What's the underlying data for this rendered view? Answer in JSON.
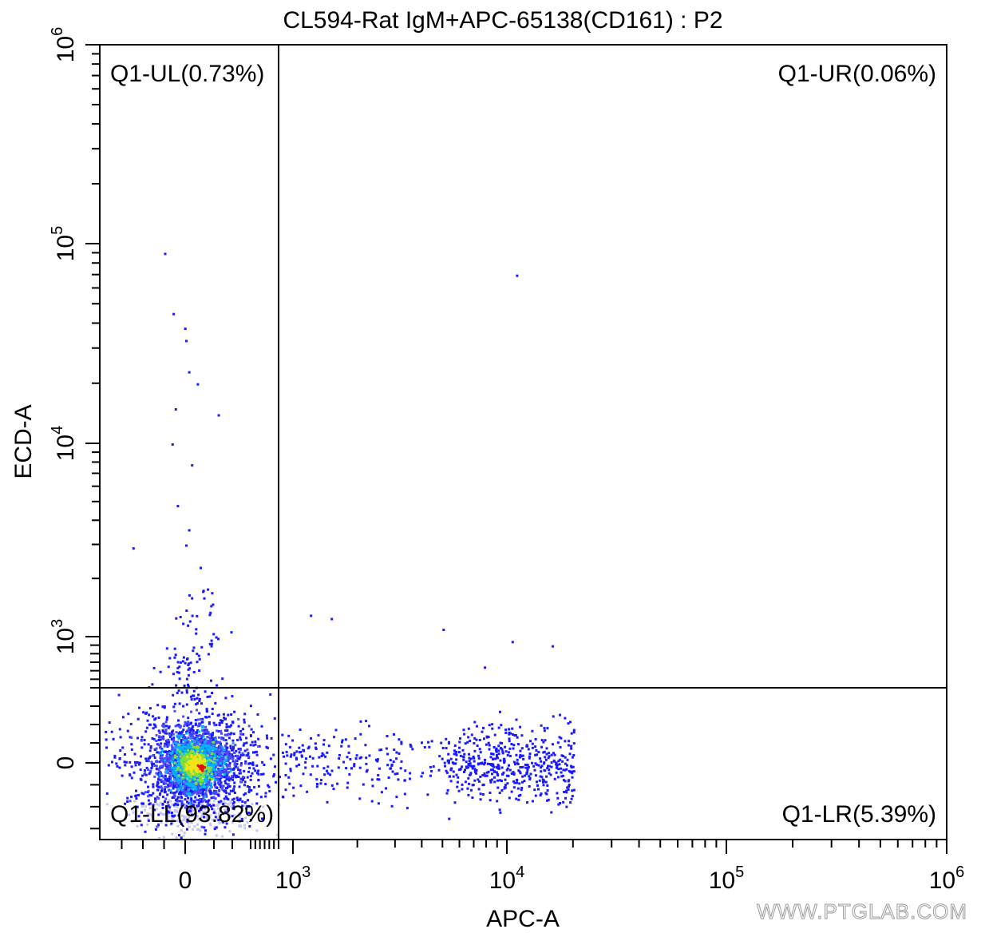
{
  "chart_data": {
    "type": "scatter",
    "title": "CL594-Rat IgM+APC-65138(CD161) : P2",
    "xlabel": "APC-A",
    "ylabel": "ECD-A",
    "x_scale": "biexponential",
    "y_scale": "biexponential",
    "xlim": [
      -400,
      1000000
    ],
    "ylim": [
      -350,
      1000000
    ],
    "grid": false,
    "x_ticks": [
      {
        "value": 0,
        "label": "0"
      },
      {
        "value": 1000,
        "base": "10",
        "exp": "3"
      },
      {
        "value": 10000,
        "base": "10",
        "exp": "4"
      },
      {
        "value": 100000,
        "base": "10",
        "exp": "5"
      },
      {
        "value": 1000000,
        "base": "10",
        "exp": "6"
      }
    ],
    "y_ticks": [
      {
        "value": 0,
        "label": "0"
      },
      {
        "value": 1000,
        "base": "10",
        "exp": "3"
      },
      {
        "value": 10000,
        "base": "10",
        "exp": "4"
      },
      {
        "value": 100000,
        "base": "10",
        "exp": "5"
      },
      {
        "value": 1000000,
        "base": "10",
        "exp": "6"
      }
    ],
    "gates": {
      "x_threshold": 900,
      "y_threshold": 400
    },
    "quadrants": [
      {
        "id": "UL",
        "label": "Q1-UL(0.73%)",
        "percent": 0.73,
        "position": "top-left"
      },
      {
        "id": "UR",
        "label": "Q1-UR(0.06%)",
        "percent": 0.06,
        "position": "top-right"
      },
      {
        "id": "LL",
        "label": "Q1-LL(93.82%)",
        "percent": 93.82,
        "position": "bottom-left"
      },
      {
        "id": "LR",
        "label": "Q1-LR(5.39%)",
        "percent": 5.39,
        "position": "bottom-right"
      }
    ],
    "populations": [
      {
        "id": "main-cluster",
        "x_center": 30,
        "y_center": 0,
        "x_spread": 90,
        "y_spread": 90
      },
      {
        "id": "apc-positive-tail",
        "x_from": 900,
        "x_to": 20000,
        "y_center": 0
      }
    ],
    "sparse_events": [
      {
        "x": -100,
        "y": 90000
      },
      {
        "x": -60,
        "y": 45000
      },
      {
        "x": -5,
        "y": 38000
      },
      {
        "x": 0,
        "y": 33000
      },
      {
        "x": 10,
        "y": 23000
      },
      {
        "x": 40,
        "y": 20000
      },
      {
        "x": -50,
        "y": 15000
      },
      {
        "x": 120,
        "y": 14000
      },
      {
        "x": -65,
        "y": 10000
      },
      {
        "x": 20,
        "y": 7800
      },
      {
        "x": -40,
        "y": 4800
      },
      {
        "x": 10,
        "y": 3600
      },
      {
        "x": 0,
        "y": 3000
      },
      {
        "x": -250,
        "y": 2900
      },
      {
        "x": 50,
        "y": 2300
      },
      {
        "x": 60,
        "y": 1750
      },
      {
        "x": 90,
        "y": 1700
      },
      {
        "x": 20,
        "y": 1600
      },
      {
        "x": 1200,
        "y": 1300
      },
      {
        "x": 1500,
        "y": 1250
      },
      {
        "x": 5000,
        "y": 1100
      },
      {
        "x": 10500,
        "y": 950
      },
      {
        "x": 16000,
        "y": 900
      },
      {
        "x": 7800,
        "y": 650
      },
      {
        "x": 11000,
        "y": 70000
      }
    ],
    "colors": {
      "sparse": "#1a1aff",
      "low_density": "#4b4bff",
      "mid_density": "#00b4ff",
      "high_density": "#7fe03a",
      "peak_density": "#f3e318",
      "max_density": "#e01010"
    }
  },
  "watermark": "WWW.PTGLAB.COM"
}
